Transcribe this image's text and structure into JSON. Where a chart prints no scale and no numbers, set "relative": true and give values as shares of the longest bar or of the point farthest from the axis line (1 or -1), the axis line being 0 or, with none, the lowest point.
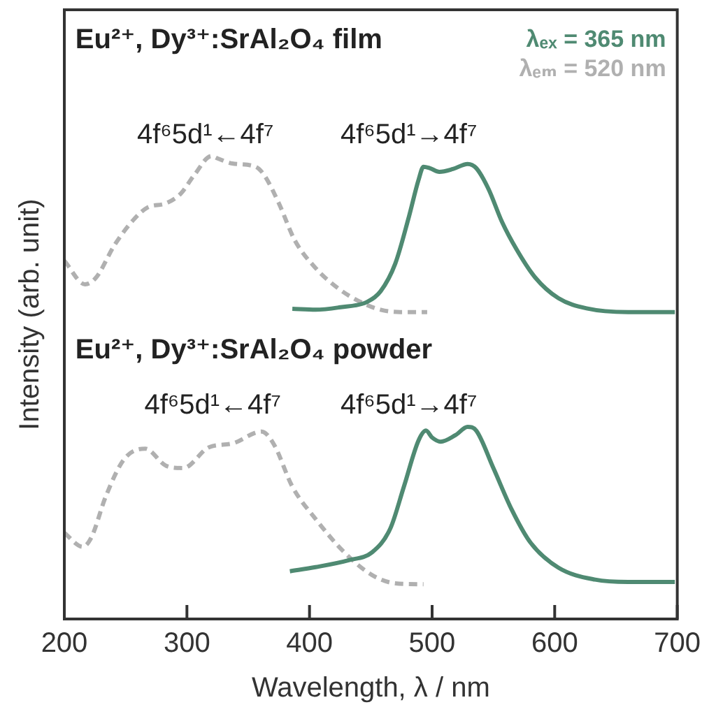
{
  "chart_data": {
    "type": "line",
    "relative": true,
    "xlabel": "Wavelength, λ / nm",
    "ylabel": "Intensity (arb. unit)",
    "xlim": [
      200,
      700
    ],
    "xticks": [
      200,
      300,
      400,
      500,
      600,
      700
    ],
    "grid": false,
    "legend": "top right",
    "marker": "none",
    "annotations": [
      "Eu²⁺, Dy³⁺:SrAl₂O₄ film",
      "Eu²⁺, Dy³⁺:SrAl₂O₄ powder",
      "4f⁶5d¹←4f⁷",
      "4f⁶5d¹→4f⁷",
      "4f⁶5d¹←4f⁷",
      "4f⁶5d¹→4f⁷"
    ],
    "series": [
      {
        "name": "λₑₓ = 365 nm",
        "color": "#4f8a72",
        "line_style": "solid",
        "x": [
          386,
          405,
          424,
          447,
          458,
          470,
          481,
          489,
          493,
          498,
          506,
          517,
          529,
          536,
          546,
          557,
          569,
          584,
          603,
          626,
          660,
          698
        ],
        "values": [
          0.67,
          0.668,
          0.673,
          0.685,
          0.708,
          0.768,
          0.868,
          0.949,
          0.977,
          0.974,
          0.966,
          0.972,
          0.983,
          0.974,
          0.929,
          0.858,
          0.798,
          0.738,
          0.693,
          0.671,
          0.663,
          0.663
        ]
      },
      {
        "name": "λₑₘ = 520 nm",
        "color": "#b0b0b0",
        "line_style": "dashed",
        "x": [
          200,
          217,
          226,
          241,
          257,
          268,
          283,
          295,
          306,
          320,
          325,
          337,
          356,
          363,
          375,
          388,
          405,
          424,
          443,
          458,
          474,
          496
        ],
        "values": [
          0.774,
          0.723,
          0.738,
          0.808,
          0.864,
          0.889,
          0.898,
          0.919,
          0.959,
          1,
          0.995,
          0.984,
          0.977,
          0.959,
          0.898,
          0.818,
          0.758,
          0.713,
          0.683,
          0.668,
          0.663,
          0.663
        ]
      },
      {
        "color": "#4f8a72",
        "line_style": "solid",
        "x": [
          384,
          405,
          432,
          451,
          466,
          477,
          489,
          495,
          500,
          507,
          519,
          529,
          536,
          550,
          565,
          580,
          603,
          633,
          660,
          698
        ],
        "values": [
          0.103,
          0.112,
          0.127,
          0.144,
          0.196,
          0.286,
          0.386,
          0.407,
          0.392,
          0.383,
          0.397,
          0.415,
          0.407,
          0.326,
          0.236,
          0.166,
          0.111,
          0.085,
          0.08,
          0.08
        ]
      },
      {
        "color": "#b0b0b0",
        "line_style": "dashed",
        "x": [
          200,
          215,
          222,
          234,
          249,
          266,
          283,
          297,
          318,
          337,
          361,
          371,
          386,
          405,
          428,
          451,
          470,
          493
        ],
        "values": [
          0.186,
          0.156,
          0.176,
          0.266,
          0.346,
          0.368,
          0.331,
          0.326,
          0.371,
          0.379,
          0.405,
          0.377,
          0.286,
          0.216,
          0.145,
          0.095,
          0.077,
          0.075
        ]
      }
    ]
  }
}
